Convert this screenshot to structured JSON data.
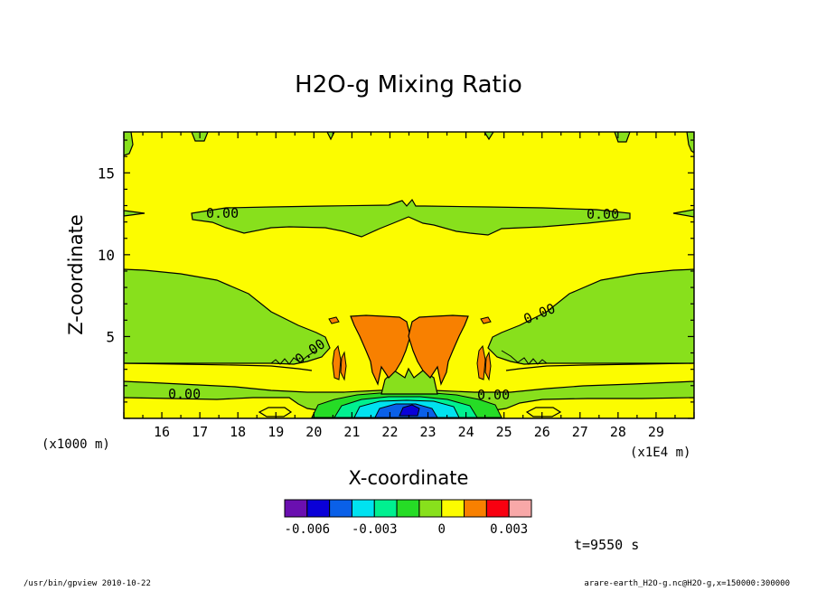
{
  "chart_data": {
    "type": "heatmap",
    "title": "H2O-g Mixing Ratio",
    "xlabel": "X-coordinate",
    "ylabel": "Z-coordinate",
    "x_unit_label": "(x1E4 m)",
    "y_unit_label": "(x1000 m)",
    "xlim": [
      15.0,
      30.0
    ],
    "ylim": [
      0.0,
      17.5
    ],
    "x_ticks": [
      "16",
      "17",
      "18",
      "19",
      "20",
      "21",
      "22",
      "23",
      "24",
      "25",
      "26",
      "27",
      "28",
      "29"
    ],
    "y_ticks": [
      "5",
      "10",
      "15"
    ],
    "contour_labels": [
      {
        "text": "0.00",
        "x": 17.6,
        "z": 12.3
      },
      {
        "text": "0.00",
        "x": 27.2,
        "z": 12.3
      },
      {
        "text": "0.00",
        "x": 19.9,
        "z": 4.5
      },
      {
        "text": "0.00",
        "x": 25.0,
        "z": 6.6
      },
      {
        "text": "0.00",
        "x": 16.7,
        "z": 1.5
      },
      {
        "text": "0.00",
        "x": 24.7,
        "z": 1.4
      }
    ],
    "colorbar": {
      "colors": [
        "#6a0fb0",
        "#0a00d8",
        "#0a60e8",
        "#00e2f0",
        "#00f090",
        "#26dc26",
        "#88e01c",
        "#fcfc00",
        "#f88000",
        "#f80010",
        "#f8a8a8"
      ],
      "tick_labels": [
        "-0.006",
        "-0.003",
        "0",
        "0.003"
      ],
      "tick_values": [
        -0.006,
        -0.003,
        0.0,
        0.003
      ],
      "boundaries": [
        -0.007,
        -0.006,
        -0.005,
        -0.004,
        -0.003,
        -0.002,
        -0.001,
        0.0,
        0.001,
        0.002,
        0.003,
        0.004
      ]
    },
    "time_label": "t=9550 s"
  },
  "footer": {
    "left": "/usr/bin/gpview  2010-10-22",
    "right": "arare-earth_H2O-g.nc@H2O-g,x=150000:300000"
  }
}
